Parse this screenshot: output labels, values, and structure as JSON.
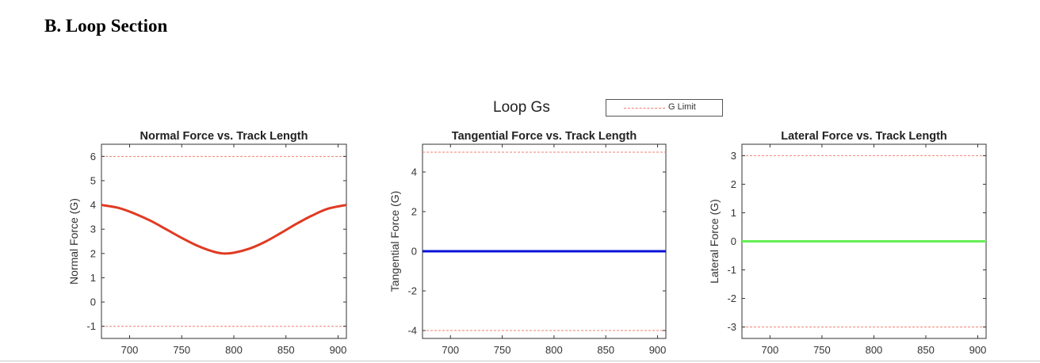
{
  "section_heading": "B.  Loop Section",
  "figure_title": "Loop Gs",
  "legend": {
    "label": "G Limit",
    "color": "#f08070"
  },
  "chart_data": [
    {
      "type": "line",
      "title": "Normal Force vs. Track Length",
      "xlabel": "",
      "ylabel": "Normal Force (G)",
      "xlim": [
        673,
        908
      ],
      "ylim": [
        -1.5,
        6.5
      ],
      "xticks": [
        700,
        750,
        800,
        850,
        900
      ],
      "yticks": [
        -1,
        0,
        1,
        2,
        3,
        4,
        5,
        6
      ],
      "series": [
        {
          "color": "#e03a22",
          "x": [
            673,
            690,
            705,
            720,
            735,
            750,
            765,
            780,
            790,
            800,
            815,
            830,
            845,
            860,
            875,
            890,
            908
          ],
          "y": [
            4.0,
            3.87,
            3.64,
            3.35,
            3.0,
            2.64,
            2.32,
            2.08,
            2.0,
            2.03,
            2.2,
            2.48,
            2.84,
            3.22,
            3.56,
            3.84,
            4.0
          ]
        }
      ],
      "limits": [
        6,
        -1
      ]
    },
    {
      "type": "line",
      "title": "Tangential Force vs. Track Length",
      "xlabel": "",
      "ylabel": "Tangential Force (G)",
      "xlim": [
        673,
        908
      ],
      "ylim": [
        -4.4,
        5.4
      ],
      "xticks": [
        700,
        750,
        800,
        850,
        900
      ],
      "yticks": [
        -4,
        -2,
        0,
        2,
        4
      ],
      "series": [
        {
          "color": "#0a12d8",
          "x": [
            673,
            908
          ],
          "y": [
            0,
            0
          ]
        }
      ],
      "limits": [
        5,
        -4
      ]
    },
    {
      "type": "line",
      "title": "Lateral Force vs. Track Length",
      "xlabel": "",
      "ylabel": "Lateral Force (G)",
      "xlim": [
        673,
        908
      ],
      "ylim": [
        -3.4,
        3.4
      ],
      "xticks": [
        700,
        750,
        800,
        850,
        900
      ],
      "yticks": [
        -3,
        -2,
        -1,
        0,
        1,
        2,
        3
      ],
      "series": [
        {
          "color": "#66ee55",
          "x": [
            673,
            908
          ],
          "y": [
            0,
            0
          ]
        }
      ],
      "limits": [
        3,
        -3
      ]
    }
  ]
}
